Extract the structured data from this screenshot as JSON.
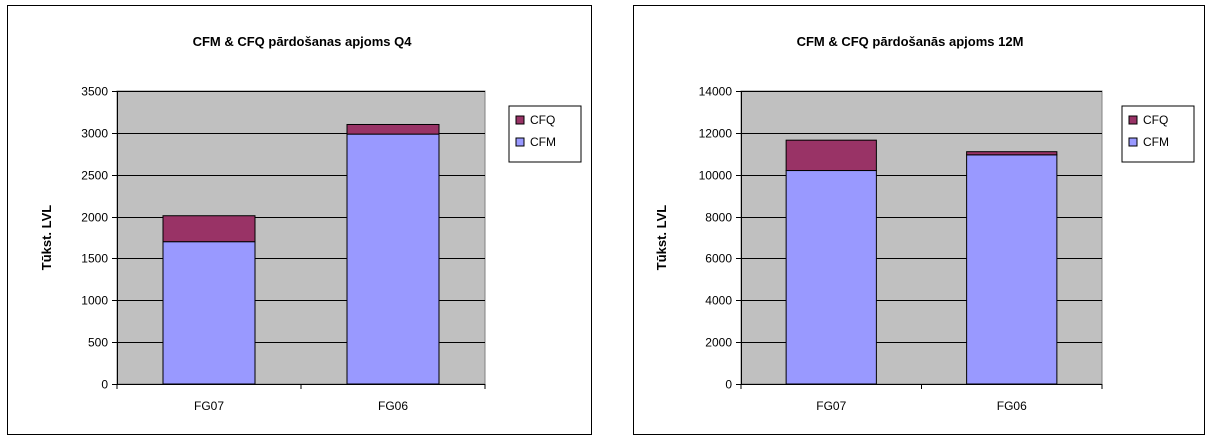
{
  "chart_data": [
    {
      "type": "bar",
      "stacked": true,
      "title": "CFM & CFQ pārdošanas apjoms Q4",
      "ylabel": "Tūkst. LVL",
      "xlabel": "",
      "categories": [
        "FG07",
        "FG06"
      ],
      "series": [
        {
          "name": "CFM",
          "values": [
            1700,
            2985
          ],
          "color": "#9999ff"
        },
        {
          "name": "CFQ",
          "values": [
            310,
            115
          ],
          "color": "#993366"
        }
      ],
      "ylim": [
        0,
        3500
      ],
      "yticks": [
        0,
        500,
        1000,
        1500,
        2000,
        2500,
        3000,
        3500
      ],
      "ytick_labels": [
        "0",
        "500",
        "1000",
        "1500",
        "2000",
        "2500",
        "3000",
        "3500"
      ],
      "legend": [
        "CFQ",
        "CFM"
      ],
      "legend_position": "right",
      "grid": true,
      "plot_background": "#c0c0c0"
    },
    {
      "type": "bar",
      "stacked": true,
      "title": "CFM & CFQ pārdošanās apjoms 12M",
      "ylabel": "Tūkst. LVL",
      "xlabel": "",
      "categories": [
        "FG07",
        "FG06"
      ],
      "series": [
        {
          "name": "CFM",
          "values": [
            10200,
            10950
          ],
          "color": "#9999ff"
        },
        {
          "name": "CFQ",
          "values": [
            1450,
            150
          ],
          "color": "#993366"
        }
      ],
      "ylim": [
        0,
        14000
      ],
      "yticks": [
        0,
        2000,
        4000,
        6000,
        8000,
        10000,
        12000,
        14000
      ],
      "ytick_labels": [
        "0",
        "2000",
        "4000",
        "6000",
        "8000",
        "10000",
        "12000",
        "14000"
      ],
      "legend": [
        "CFQ",
        "CFM"
      ],
      "legend_position": "right",
      "grid": true,
      "plot_background": "#c0c0c0"
    }
  ]
}
